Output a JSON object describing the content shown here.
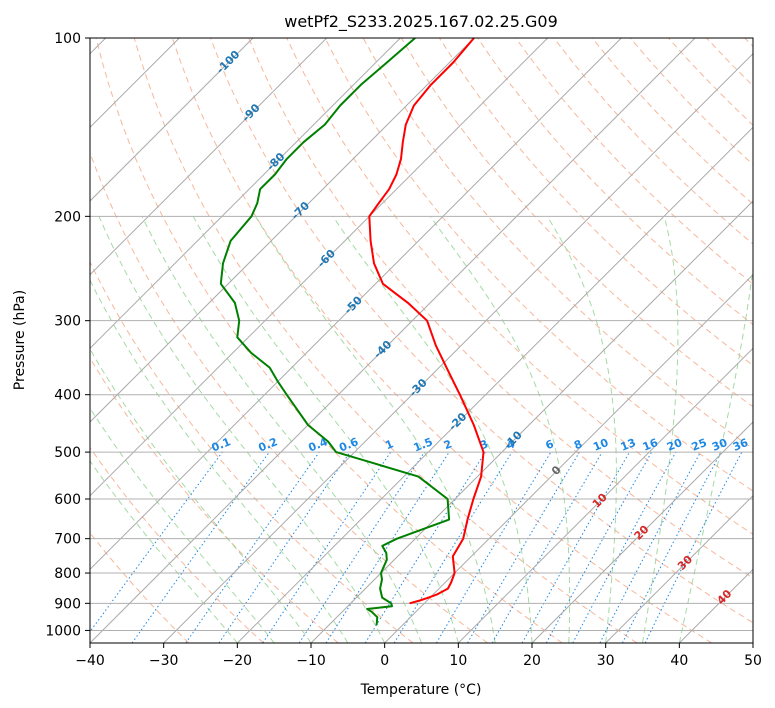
{
  "chart_data": {
    "type": "line",
    "title": "wetPf2_S233.2025.167.02.25.G09",
    "xlabel": "Temperature (°C)",
    "ylabel": "Pressure (hPa)",
    "xlim": [
      -40,
      50
    ],
    "ylim": [
      1050,
      100
    ],
    "yscale": "log",
    "skew": 45,
    "grid": true,
    "x_ticks": [
      -40,
      -30,
      -20,
      -10,
      0,
      10,
      20,
      30,
      40,
      50
    ],
    "x_tick_labels": [
      "−40",
      "−30",
      "−20",
      "−10",
      "0",
      "10",
      "20",
      "30",
      "40",
      "50"
    ],
    "y_ticks": [
      100,
      200,
      300,
      400,
      500,
      600,
      700,
      800,
      900,
      1000
    ],
    "y_tick_labels": [
      "100",
      "200",
      "300",
      "400",
      "500",
      "600",
      "700",
      "800",
      "900",
      "1000"
    ],
    "colors": {
      "temperature": "#ff0000",
      "dewpoint": "#008000",
      "isotherm_label": "#1f77b4",
      "mixing_ratio": "#1e88e5",
      "dry_adiabat": "#f4a582",
      "moist_adiabat": "#8fcf8f",
      "isotherm": "#aaaaaa",
      "theta_label": "#d62728"
    },
    "isotherm_labels": [
      {
        "T": -100,
        "p": 110,
        "text": "-100"
      },
      {
        "T": -90,
        "p": 134,
        "text": "-90"
      },
      {
        "T": -80,
        "p": 162,
        "text": "-80"
      },
      {
        "T": -70,
        "p": 196,
        "text": "-70"
      },
      {
        "T": -60,
        "p": 236,
        "text": "-60"
      },
      {
        "T": -50,
        "p": 283,
        "text": "-50"
      },
      {
        "T": -40,
        "p": 336,
        "text": "-40"
      },
      {
        "T": -30,
        "p": 390,
        "text": "-30"
      },
      {
        "T": -20,
        "p": 445,
        "text": "-20"
      },
      {
        "T": -10,
        "p": 478,
        "text": "-10"
      },
      {
        "T": 0,
        "p": 538,
        "text": "0"
      },
      {
        "T": 10,
        "p": 605,
        "text": "10"
      },
      {
        "T": 20,
        "p": 685,
        "text": "20"
      },
      {
        "T": 30,
        "p": 770,
        "text": "30"
      },
      {
        "T": 40,
        "p": 880,
        "text": "40"
      }
    ],
    "mixing_ratio_labels": [
      "0.1",
      "0.2",
      "0.4",
      "0.6",
      "1",
      "1.5",
      "2",
      "3",
      "4",
      "6",
      "8",
      "10",
      "13",
      "16",
      "20",
      "25",
      "30",
      "36"
    ],
    "mixing_ratio_values": [
      0.1,
      0.2,
      0.4,
      0.6,
      1,
      1.5,
      2,
      3,
      4,
      6,
      8,
      10,
      13,
      16,
      20,
      25,
      30,
      36
    ],
    "series": [
      {
        "name": "Temperature",
        "pressure": [
          100,
          110,
          120,
          130,
          140,
          150,
          160,
          170,
          180,
          190,
          200,
          220,
          240,
          260,
          280,
          300,
          330,
          360,
          400,
          450,
          500,
          550,
          600,
          650,
          700,
          750,
          800,
          830,
          850,
          870,
          880,
          890,
          900
        ],
        "values": [
          -70,
          -69.5,
          -69.5,
          -69,
          -67.5,
          -65.5,
          -63.5,
          -62,
          -61,
          -60.5,
          -60,
          -56.5,
          -53,
          -49,
          -43,
          -38,
          -33.5,
          -29,
          -23.5,
          -17.5,
          -12.5,
          -9.5,
          -7.5,
          -5.5,
          -3.5,
          -2.5,
          0,
          0.8,
          1.2,
          0.5,
          -0.2,
          -1,
          -2
        ]
      },
      {
        "name": "Dewpoint",
        "pressure": [
          100,
          110,
          120,
          130,
          140,
          150,
          160,
          170,
          180,
          190,
          200,
          220,
          240,
          260,
          280,
          300,
          320,
          340,
          360,
          380,
          400,
          450,
          480,
          500,
          520,
          550,
          600,
          650,
          700,
          720,
          740,
          760,
          780,
          800,
          820,
          850,
          880,
          900,
          910,
          920,
          930,
          950,
          980
        ],
        "values": [
          -78,
          -78.5,
          -79,
          -79,
          -78.5,
          -79,
          -79,
          -78.5,
          -78.5,
          -77,
          -76,
          -75.5,
          -73.5,
          -71,
          -66.5,
          -63.5,
          -61.5,
          -57.5,
          -53,
          -50,
          -47,
          -40,
          -35,
          -32.5,
          -26.5,
          -18,
          -11,
          -8,
          -12.5,
          -13.5,
          -12,
          -11,
          -10.5,
          -10,
          -9,
          -8,
          -6.5,
          -4.5,
          -4,
          -7,
          -6,
          -4.5,
          -3.5
        ]
      }
    ]
  }
}
